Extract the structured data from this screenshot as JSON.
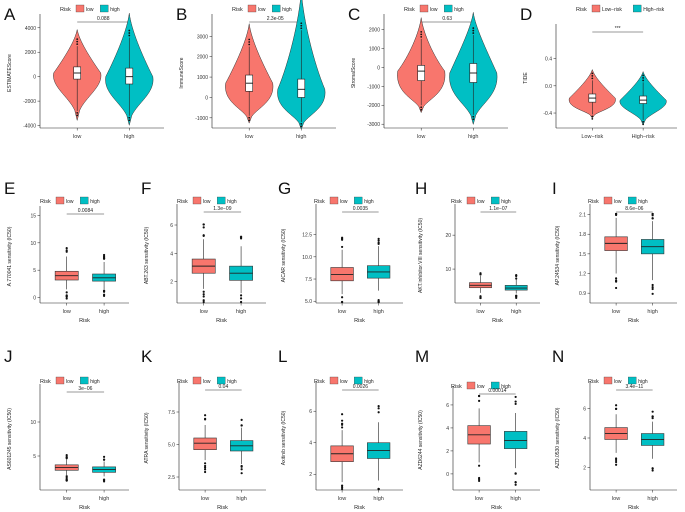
{
  "colors": {
    "low": "#F8766D",
    "high": "#00BFC4"
  },
  "chart_data": [
    {
      "type": "violin",
      "letter": "A",
      "legend_title": "Risk",
      "legend": [
        "low",
        "high"
      ],
      "ylabel": "ESTIMATEScore",
      "yticks": [
        "4000",
        "2000",
        "0",
        "-2000",
        "-4000"
      ],
      "ylim": [
        -4200,
        4800
      ],
      "categories": [
        "low",
        "high"
      ],
      "xlabel": "",
      "pvalue": "0.088",
      "boxes": [
        {
          "min": -2800,
          "q1": -200,
          "median": 300,
          "q3": 800,
          "max": 2500
        },
        {
          "min": -3200,
          "q1": -600,
          "median": 0,
          "q3": 700,
          "max": 3200
        }
      ]
    },
    {
      "type": "violin",
      "letter": "B",
      "legend_title": "Risk",
      "legend": [
        "low",
        "high"
      ],
      "ylabel": "ImmuneScore",
      "yticks": [
        "3000",
        "2000",
        "1000",
        "0",
        "-1000"
      ],
      "ylim": [
        -1500,
        3900
      ],
      "categories": [
        "low",
        "high"
      ],
      "xlabel": "",
      "pvalue": "2.3e-05",
      "boxes": [
        {
          "min": -900,
          "q1": 300,
          "median": 700,
          "q3": 1100,
          "max": 2500
        },
        {
          "min": -1200,
          "q1": 0,
          "median": 400,
          "q3": 900,
          "max": 3300
        }
      ]
    },
    {
      "type": "violin",
      "letter": "C",
      "legend_title": "Risk",
      "legend": [
        "low",
        "high"
      ],
      "ylabel": "StromalScore",
      "yticks": [
        "2000",
        "1000",
        "0",
        "-1000",
        "-2000",
        "-3000"
      ],
      "ylim": [
        -3200,
        2600
      ],
      "categories": [
        "low",
        "high"
      ],
      "xlabel": "",
      "pvalue": "0.63",
      "boxes": [
        {
          "min": -2000,
          "q1": -700,
          "median": -200,
          "q3": 100,
          "max": 1500
        },
        {
          "min": -2500,
          "q1": -800,
          "median": -300,
          "q3": 200,
          "max": 1700
        }
      ]
    },
    {
      "type": "violin",
      "letter": "D",
      "legend_title": "Risk",
      "legend": [
        "Low−risk",
        "High−risk"
      ],
      "ylabel": "TIDE",
      "yticks": [
        "0.4",
        "0.0",
        "-0.4"
      ],
      "ylim": [
        -0.62,
        0.85
      ],
      "categories": [
        "Low−risk",
        "High−risk"
      ],
      "xlabel": "",
      "pvalue": "***",
      "boxes": [
        {
          "min": -0.42,
          "q1": -0.24,
          "median": -0.18,
          "q3": -0.12,
          "max": 0.08
        },
        {
          "min": -0.5,
          "q1": -0.26,
          "median": -0.21,
          "q3": -0.15,
          "max": 0.05
        }
      ]
    },
    {
      "type": "boxplot",
      "letter": "E",
      "legend_title": "Risk",
      "legend": [
        "low",
        "high"
      ],
      "ylabel": "A.770041 sensitivity (IC50)",
      "yticks": [
        "15",
        "10",
        "5",
        "0"
      ],
      "ylim": [
        -1,
        16
      ],
      "categories": [
        "low",
        "high"
      ],
      "xlabel": "Risk",
      "pvalue": "0.0084",
      "boxes": [
        {
          "min": 1.5,
          "q1": 3.2,
          "median": 4.0,
          "q3": 4.8,
          "max": 7.5
        },
        {
          "min": 1.5,
          "q1": 3.0,
          "median": 3.6,
          "q3": 4.3,
          "max": 6.5
        }
      ]
    },
    {
      "type": "boxplot",
      "letter": "F",
      "legend_title": "Risk",
      "legend": [
        "low",
        "high"
      ],
      "ylabel": "ABT.263 sensitivity (IC50)",
      "yticks": [
        "6",
        "4",
        "2"
      ],
      "ylim": [
        0.5,
        7.2
      ],
      "categories": [
        "low",
        "high"
      ],
      "xlabel": "Risk",
      "pvalue": "1.3e−09",
      "boxes": [
        {
          "min": 1.5,
          "q1": 2.6,
          "median": 3.1,
          "q3": 3.6,
          "max": 5.0
        },
        {
          "min": 1.2,
          "q1": 2.1,
          "median": 2.6,
          "q3": 3.1,
          "max": 4.5
        }
      ]
    },
    {
      "type": "boxplot",
      "letter": "G",
      "legend_title": "Risk",
      "legend": [
        "low",
        "high"
      ],
      "ylabel": "AICAR sensitivity (IC50)",
      "yticks": [
        "12.5",
        "10.0",
        "7.5",
        "5.0"
      ],
      "ylim": [
        4.8,
        15.5
      ],
      "categories": [
        "low",
        "high"
      ],
      "xlabel": "Risk",
      "pvalue": "0.0035",
      "boxes": [
        {
          "min": 5.8,
          "q1": 7.3,
          "median": 8.0,
          "q3": 8.8,
          "max": 10.8
        },
        {
          "min": 6.2,
          "q1": 7.6,
          "median": 8.3,
          "q3": 9.0,
          "max": 11.2
        }
      ]
    },
    {
      "type": "boxplot",
      "letter": "H",
      "legend_title": "Risk",
      "legend": [
        "low",
        "high"
      ],
      "ylabel": "AKT.inhibitor.VIII sensitivity (IC50)",
      "yticks": [
        "20",
        "10"
      ],
      "ylim": [
        0,
        28
      ],
      "categories": [
        "low",
        "high"
      ],
      "xlabel": "Risk",
      "pvalue": "1.1e−07",
      "boxes": [
        {
          "min": 3.0,
          "q1": 4.5,
          "median": 5.2,
          "q3": 6.0,
          "max": 8.0
        },
        {
          "min": 2.8,
          "q1": 3.8,
          "median": 4.4,
          "q3": 5.2,
          "max": 7.0
        }
      ]
    },
    {
      "type": "boxplot",
      "letter": "I",
      "legend_title": "Risk",
      "legend": [
        "low",
        "high"
      ],
      "ylabel": "AP.24534 sensitivity (IC50)",
      "yticks": [
        "2.1",
        "1.8",
        "1.5",
        "1.2",
        "0.9"
      ],
      "ylim": [
        0.75,
        2.2
      ],
      "categories": [
        "low",
        "high"
      ],
      "xlabel": "Risk",
      "pvalue": "8.6e−06",
      "boxes": [
        {
          "min": 1.2,
          "q1": 1.55,
          "median": 1.66,
          "q3": 1.76,
          "max": 2.05
        },
        {
          "min": 1.1,
          "q1": 1.5,
          "median": 1.61,
          "q3": 1.72,
          "max": 2.0
        }
      ]
    },
    {
      "type": "boxplot",
      "letter": "J",
      "legend_title": "Risk",
      "legend": [
        "low",
        "high"
      ],
      "ylabel": "AS601245 sensitivity (IC50)",
      "yticks": [
        "10",
        "5"
      ],
      "ylim": [
        0,
        15
      ],
      "categories": [
        "low",
        "high"
      ],
      "xlabel": "Risk",
      "pvalue": "3e−06",
      "boxes": [
        {
          "min": 2.2,
          "q1": 2.9,
          "median": 3.3,
          "q3": 3.7,
          "max": 4.5
        },
        {
          "min": 2.0,
          "q1": 2.6,
          "median": 3.0,
          "q3": 3.4,
          "max": 4.2
        }
      ]
    },
    {
      "type": "boxplot",
      "letter": "K",
      "legend_title": "Risk",
      "legend": [
        "low",
        "high"
      ],
      "ylabel": "ATRA sensitivity (IC50)",
      "yticks": [
        "7.5",
        "5.0",
        "2.5"
      ],
      "ylim": [
        1.5,
        9.5
      ],
      "categories": [
        "low",
        "high"
      ],
      "xlabel": "Risk",
      "pvalue": "0.04",
      "boxes": [
        {
          "min": 3.8,
          "q1": 4.6,
          "median": 5.1,
          "q3": 5.5,
          "max": 6.5
        },
        {
          "min": 3.5,
          "q1": 4.5,
          "median": 4.9,
          "q3": 5.3,
          "max": 6.3
        }
      ]
    },
    {
      "type": "boxplot",
      "letter": "L",
      "legend_title": "Risk",
      "legend": [
        "low",
        "high"
      ],
      "ylabel": "Axitinib sensitivity (IC50)",
      "yticks": [
        "6",
        "4",
        "2"
      ],
      "ylim": [
        1,
        7.6
      ],
      "categories": [
        "low",
        "high"
      ],
      "xlabel": "Risk",
      "pvalue": "0.0026",
      "boxes": [
        {
          "min": 1.5,
          "q1": 2.8,
          "median": 3.3,
          "q3": 3.8,
          "max": 4.8
        },
        {
          "min": 1.6,
          "q1": 3.0,
          "median": 3.5,
          "q3": 4.0,
          "max": 5.3
        }
      ]
    },
    {
      "type": "boxplot",
      "letter": "M",
      "legend_title": "Risk",
      "legend": [
        "low",
        "high"
      ],
      "ylabel": "AZD6244 sensitivity (IC50)",
      "yticks": [
        "6",
        "4",
        "2",
        "0"
      ],
      "ylim": [
        -1.4,
        7.3
      ],
      "categories": [
        "low",
        "high"
      ],
      "xlabel": "Risk",
      "pvalue": "0.00014",
      "boxes": [
        {
          "min": 1.0,
          "q1": 2.6,
          "median": 3.4,
          "q3": 4.2,
          "max": 5.7
        },
        {
          "min": 0.5,
          "q1": 2.2,
          "median": 2.9,
          "q3": 3.7,
          "max": 5.3
        }
      ]
    },
    {
      "type": "boxplot",
      "letter": "N",
      "legend_title": "Risk",
      "legend": [
        "low",
        "high"
      ],
      "ylabel": "AZD.0530 sensitivity (IC50)",
      "yticks": [
        "6",
        "4",
        "2"
      ],
      "ylim": [
        0.5,
        7.5
      ],
      "categories": [
        "low",
        "high"
      ],
      "xlabel": "Risk",
      "pvalue": "3.4e−11",
      "boxes": [
        {
          "min": 3.0,
          "q1": 3.9,
          "median": 4.3,
          "q3": 4.7,
          "max": 5.6
        },
        {
          "min": 2.6,
          "q1": 3.5,
          "median": 3.9,
          "q3": 4.3,
          "max": 5.1
        }
      ]
    }
  ]
}
